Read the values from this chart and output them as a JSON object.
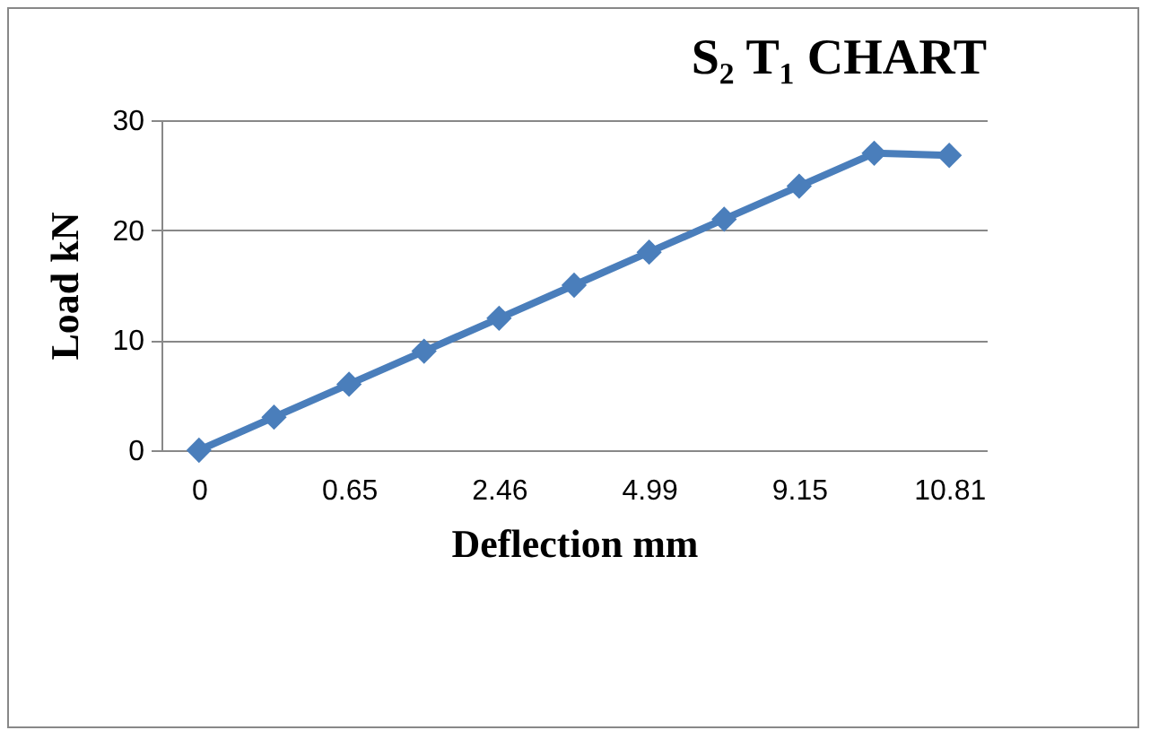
{
  "chart_data": {
    "type": "line",
    "title": "S₂ T₁ CHART",
    "xlabel": "Deflection mm",
    "ylabel": "Load kN",
    "categories": [
      "0",
      null,
      "0.65",
      null,
      "2.46",
      null,
      "4.99",
      null,
      "9.15",
      null,
      "10.81"
    ],
    "series": [
      {
        "color": "#4a7ebb",
        "values": [
          0,
          3,
          6,
          9,
          12,
          15,
          18,
          21,
          24,
          27,
          26.8
        ]
      }
    ],
    "ylim": [
      0,
      30
    ],
    "yticks": [
      0,
      10,
      20,
      30
    ],
    "grid": "y",
    "marker": "diamond",
    "line_style": "solid",
    "legend": false
  }
}
